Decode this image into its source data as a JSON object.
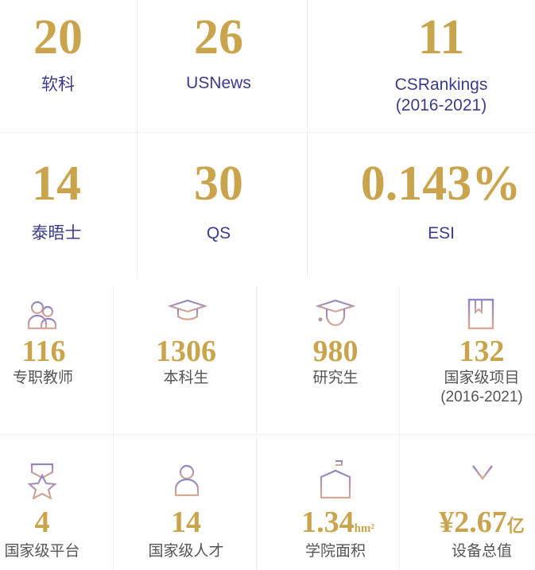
{
  "top": [
    {
      "value": "20",
      "label": "软科"
    },
    {
      "value": "26",
      "label": "USNews"
    },
    {
      "value": "11",
      "label": "CSRankings",
      "sub": "(2016-2021)"
    },
    {
      "value": "14",
      "label": "泰晤士"
    },
    {
      "value": "30",
      "label": "QS"
    },
    {
      "value": "0.143%",
      "label": "ESI"
    }
  ],
  "stats": [
    {
      "value": "116",
      "label": "专职教师",
      "icon": "teachers-icon"
    },
    {
      "value": "1306",
      "label": "本科生",
      "icon": "graduation-cap-icon"
    },
    {
      "value": "980",
      "label": "研究生",
      "icon": "graduate-student-icon"
    },
    {
      "value": "132",
      "label": "国家级项目",
      "sub": "(2016-2021)",
      "icon": "bookmark-book-icon"
    },
    {
      "value": "4",
      "label": "国家级平台",
      "icon": "star-badge-icon"
    },
    {
      "value": "14",
      "label": "国家级人才",
      "icon": "person-icon"
    },
    {
      "value": "1.34",
      "unit": "hm²",
      "label": "学院面积",
      "icon": "building-icon"
    },
    {
      "value": "¥2.67",
      "unit": "亿",
      "label": "设备总值",
      "icon": "yen-icon"
    }
  ],
  "colors": {
    "gold": "#c9a44c",
    "label_blue": "#3b3b8f",
    "icon_purple": "#9b8fb8"
  }
}
